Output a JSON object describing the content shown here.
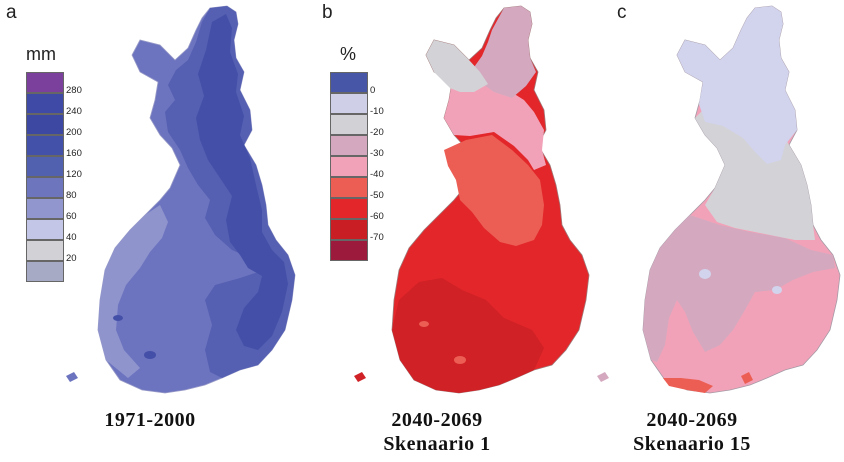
{
  "panels": [
    {
      "letter": "a",
      "unit": "mm",
      "caption_line1": "1971-2000",
      "caption_line2": "",
      "legend": [
        {
          "label": "280",
          "color": "#7b3f9c"
        },
        {
          "label": "240",
          "color": "#3f4aa6"
        },
        {
          "label": "200",
          "color": "#3d48a3"
        },
        {
          "label": "160",
          "color": "#4351a8"
        },
        {
          "label": "120",
          "color": "#5260b0"
        },
        {
          "label": "80",
          "color": "#6d76bc"
        },
        {
          "label": "60",
          "color": "#9196cf"
        },
        {
          "label": "40",
          "color": "#c3c6e6"
        },
        {
          "label": "20",
          "color": "#d2d2d6"
        },
        {
          "label": "",
          "color": "#a7aac4"
        }
      ]
    },
    {
      "letter": "b",
      "unit": "%",
      "caption_line1": "2040-2069",
      "caption_line2": "Skenaario 1",
      "legend": [
        {
          "label": "0",
          "color": "#4856a8"
        },
        {
          "label": "-10",
          "color": "#cfd0e8"
        },
        {
          "label": "-20",
          "color": "#d2d2d6"
        },
        {
          "label": "-30",
          "color": "#d4a9bf"
        },
        {
          "label": "-40",
          "color": "#f2a2b8"
        },
        {
          "label": "-50",
          "color": "#ec5e54"
        },
        {
          "label": "-60",
          "color": "#e2262a"
        },
        {
          "label": "-70",
          "color": "#c91e24"
        },
        {
          "label": "",
          "color": "#9c1a3c"
        }
      ]
    },
    {
      "letter": "c",
      "unit": "",
      "caption_line1": "2040-2069",
      "caption_line2": "Skenaario 15",
      "legend": []
    }
  ],
  "colors": {
    "a_base": "#6d74bf",
    "a_mid": "#5560b2",
    "a_dark": "#4450a8",
    "a_light": "#8f94cd",
    "b_base": "#e2262a",
    "b_dark": "#cf2126",
    "b_orange": "#ec5e54",
    "b_pink": "#f2a2b8",
    "b_mauve": "#d4a9bf",
    "b_grey": "#d3d3d7",
    "c_lav": "#d2d3ec",
    "c_grey": "#d3d3d7",
    "c_mauve": "#d4a9bf",
    "c_pink": "#f2a2b8",
    "c_orange": "#ec5e54"
  }
}
